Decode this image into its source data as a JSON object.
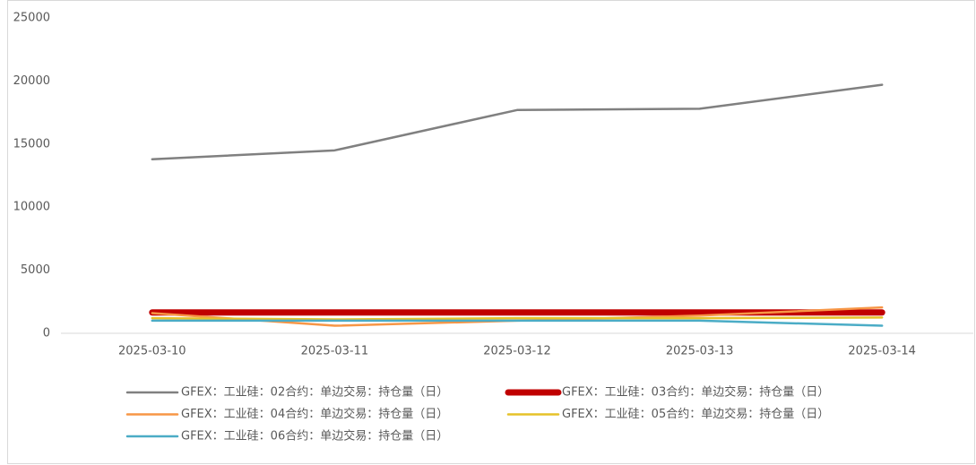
{
  "chart_data": {
    "type": "line",
    "categories": [
      "2025-03-10",
      "2025-03-11",
      "2025-03-12",
      "2025-03-13",
      "2025-03-14"
    ],
    "series": [
      {
        "name": "GFEX：工业硅：02合约：单边交易：持仓量（日）",
        "color": "#808080",
        "width": 2.5,
        "values": [
          13800,
          14500,
          17700,
          17800,
          19700
        ]
      },
      {
        "name": "GFEX：工业硅：03合约：单边交易：持仓量（日）",
        "color": "#c00000",
        "width": 7,
        "values": [
          1650,
          1650,
          1650,
          1650,
          1650
        ]
      },
      {
        "name": "GFEX：工业硅：04合约：单边交易：持仓量（日）",
        "color": "#f79646",
        "width": 2.5,
        "values": [
          1600,
          600,
          1000,
          1400,
          2050
        ]
      },
      {
        "name": "GFEX：工业硅：05合约：单边交易：持仓量（日）",
        "color": "#e6c229",
        "width": 2.5,
        "values": [
          1200,
          1100,
          1200,
          1200,
          1250
        ]
      },
      {
        "name": "GFEX：工业硅：06合约：单边交易：持仓量（日）",
        "color": "#4bacc6",
        "width": 2.5,
        "values": [
          1000,
          1000,
          1000,
          1000,
          600
        ]
      }
    ],
    "ylim": [
      0,
      25000
    ],
    "yticks": [
      0,
      5000,
      10000,
      15000,
      20000,
      25000
    ],
    "grid": false
  }
}
